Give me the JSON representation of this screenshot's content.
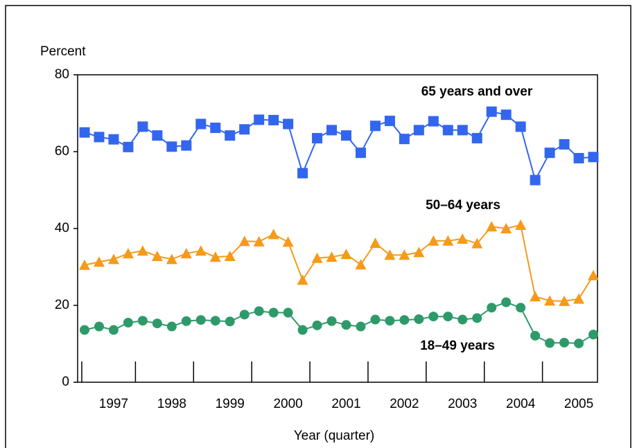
{
  "chart_data": {
    "type": "line",
    "y_label": "Percent",
    "x_label": "Year (quarter)",
    "categories": [
      null,
      null,
      "1997",
      null,
      null,
      null,
      "1998",
      null,
      null,
      null,
      "1999",
      null,
      null,
      null,
      "2000",
      null,
      null,
      null,
      "2001",
      null,
      null,
      null,
      "2002",
      null,
      null,
      null,
      "2003",
      null,
      null,
      null,
      "2004",
      null,
      null,
      null,
      "2005",
      null
    ],
    "series": [
      {
        "name": "65 years and over",
        "color": "#3366ee",
        "marker": "square",
        "values": [
          65,
          63.8,
          63.2,
          61.2,
          66.5,
          64.2,
          61.3,
          61.6,
          67.2,
          66.2,
          64.2,
          65.8,
          68.3,
          68.2,
          67.2,
          54.4,
          63.5,
          65.6,
          64.2,
          59.7,
          66.7,
          68.0,
          63.3,
          65.6,
          67.9,
          65.6,
          65.6,
          63.5,
          70.4,
          69.6,
          66.5,
          52.6,
          59.7,
          61.9,
          58.3,
          58.6
        ]
      },
      {
        "name": "50–64 years",
        "color": "#f59a1a",
        "marker": "triangle",
        "values": [
          30.5,
          31.3,
          32,
          33.5,
          34.2,
          32.8,
          32,
          33.5,
          34.2,
          32.6,
          32.8,
          36.7,
          36.6,
          38.5,
          36.5,
          26.6,
          32.3,
          32.6,
          33.3,
          30.6,
          36.2,
          33.1,
          33.1,
          33.8,
          36.8,
          36.8,
          37.3,
          36.1,
          40.5,
          40,
          40.9,
          22.3,
          21.2,
          21.1,
          21.7,
          27.8
        ]
      },
      {
        "name": "18–49 years",
        "color": "#2e9a6a",
        "marker": "circle",
        "values": [
          13.6,
          14.5,
          13.6,
          15.5,
          16,
          15.3,
          14.5,
          15.9,
          16.2,
          16,
          15.8,
          17.6,
          18.5,
          18.1,
          18.1,
          13.6,
          14.8,
          15.9,
          14.9,
          14.5,
          16.3,
          16,
          16.2,
          16.4,
          17.1,
          17.1,
          16.3,
          16.7,
          19.4,
          20.8,
          19.4,
          12.1,
          10.2,
          10.3,
          10.1,
          12.4
        ]
      }
    ],
    "ylim": [
      0,
      80
    ],
    "yticks": [
      0,
      20,
      40,
      60,
      80
    ],
    "grid": false
  }
}
